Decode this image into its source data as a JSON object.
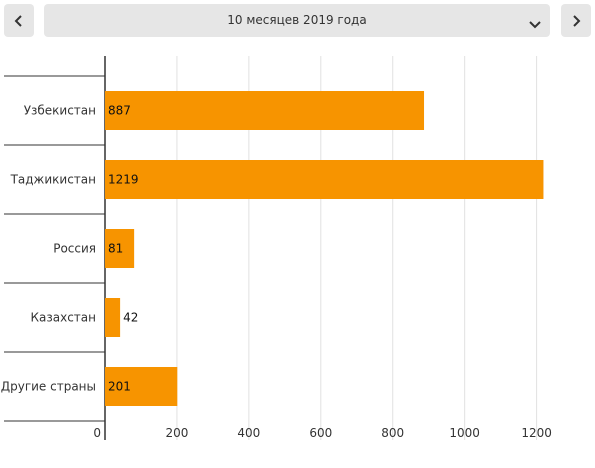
{
  "header": {
    "period_label": "10 месяцев 2019 года",
    "prev_icon": "chevron-left-icon",
    "next_icon": "chevron-right-icon",
    "dropdown_icon": "chevron-down-icon"
  },
  "colors": {
    "bar": "#f79400",
    "grid": "#e0e0e0",
    "axis": "#333333",
    "button_bg": "#e6e6e6"
  },
  "chart_data": {
    "type": "bar",
    "orientation": "horizontal",
    "categories": [
      "Узбекистан",
      "Таджикистан",
      "Россия",
      "Казахстан",
      "Другие страны"
    ],
    "values": [
      887,
      1219,
      81,
      42,
      201
    ],
    "data_labels": [
      "887",
      "1219",
      "81",
      "42",
      "201"
    ],
    "xticks": [
      0,
      200,
      400,
      600,
      800,
      1000,
      1200
    ],
    "xlim": [
      0,
      1240
    ],
    "grid": true,
    "title": "",
    "xlabel": "",
    "ylabel": ""
  }
}
